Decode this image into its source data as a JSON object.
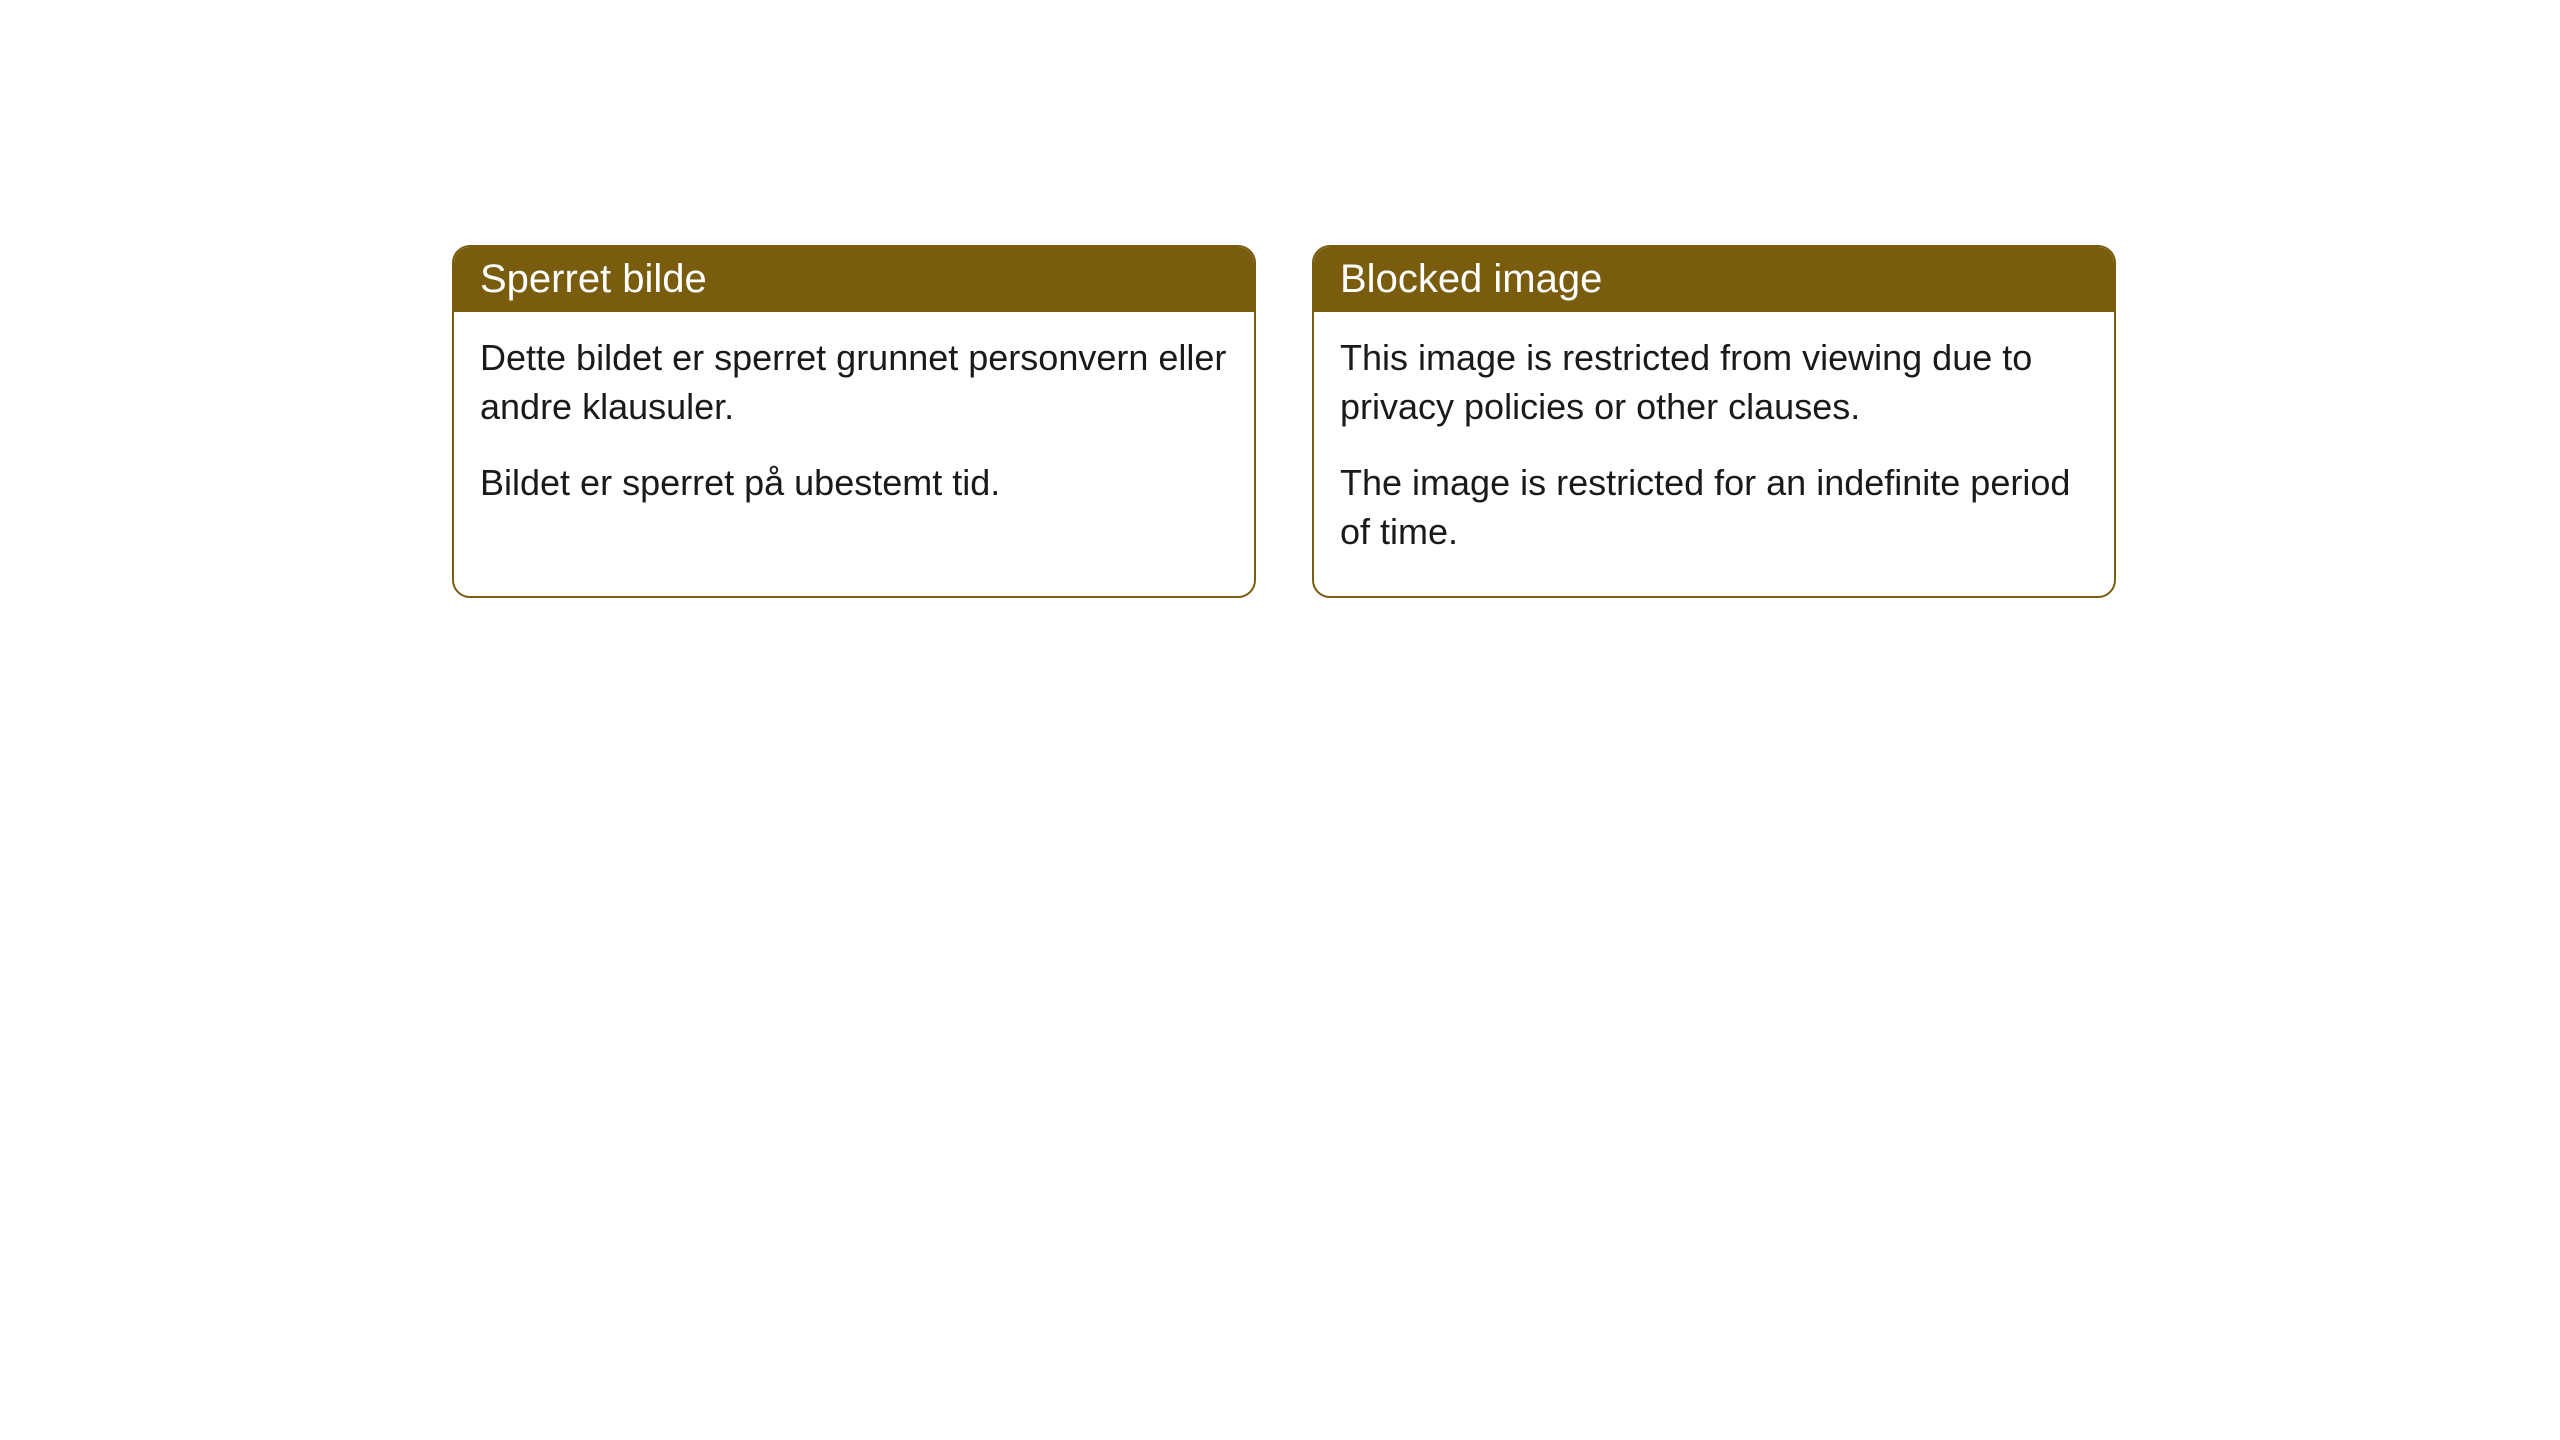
{
  "cards": [
    {
      "title": "Sperret bilde",
      "paragraph1": "Dette bildet er sperret grunnet personvern eller andre klausuler.",
      "paragraph2": "Bildet er sperret på ubestemt tid."
    },
    {
      "title": "Blocked image",
      "paragraph1": "This image is restricted from viewing due to privacy policies or other clauses.",
      "paragraph2": "The image is restricted for an indefinite period of time."
    }
  ],
  "style": {
    "header_background": "#7a5c0f",
    "header_text_color": "#ffffff",
    "border_color": "#7a5c0f",
    "body_background": "#ffffff",
    "body_text_color": "#1a1a1a",
    "border_radius": 18,
    "title_fontsize": 40,
    "body_fontsize": 36
  }
}
